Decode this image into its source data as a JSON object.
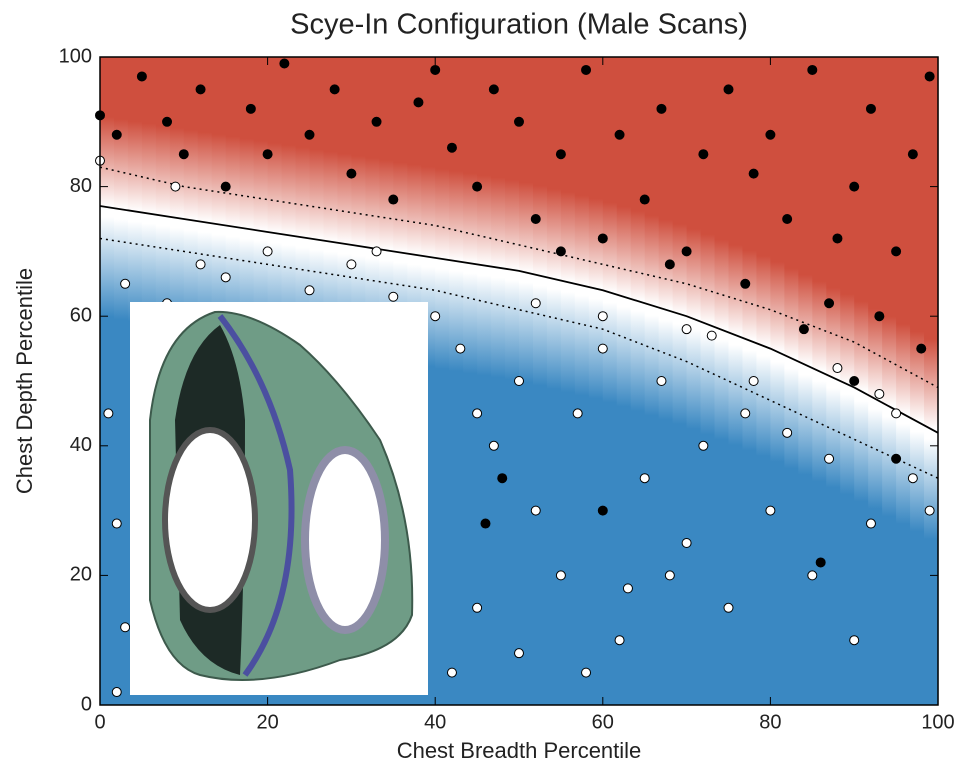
{
  "chart_data": {
    "type": "scatter",
    "title": "Scye-In Configuration (Male Scans)",
    "x_label": "Chest Breadth Percentile",
    "y_label": "Chest Depth Percentile",
    "xlim": [
      0,
      100
    ],
    "ylim": [
      0,
      100
    ],
    "xticks": [
      0,
      20,
      40,
      60,
      80,
      100
    ],
    "yticks": [
      0,
      20,
      40,
      60,
      80,
      100
    ],
    "series": [
      {
        "color": "#000000",
        "edge": "#000000",
        "x": [
          0,
          2,
          5,
          8,
          10,
          12,
          15,
          18,
          20,
          22,
          25,
          28,
          30,
          33,
          35,
          38,
          40,
          42,
          45,
          47,
          50,
          52,
          55,
          58,
          60,
          62,
          65,
          67,
          70,
          72,
          75,
          77,
          80,
          82,
          85,
          87,
          90,
          92,
          95,
          97,
          99,
          98,
          93,
          88,
          78,
          68,
          55,
          48,
          46,
          60,
          86,
          95,
          90,
          84
        ],
        "values": [
          91,
          88,
          97,
          90,
          85,
          95,
          80,
          92,
          85,
          99,
          88,
          95,
          82,
          90,
          78,
          93,
          98,
          86,
          80,
          95,
          90,
          75,
          85,
          98,
          72,
          88,
          78,
          92,
          70,
          85,
          95,
          65,
          88,
          75,
          98,
          62,
          80,
          92,
          70,
          85,
          97,
          55,
          60,
          72,
          82,
          68,
          70,
          35,
          28,
          30,
          22,
          38,
          50,
          58
        ]
      },
      {
        "color": "#ffffff",
        "edge": "#000000",
        "x": [
          0,
          3,
          8,
          12,
          15,
          20,
          25,
          30,
          35,
          40,
          43,
          45,
          47,
          50,
          52,
          55,
          57,
          60,
          62,
          65,
          67,
          70,
          72,
          75,
          77,
          80,
          82,
          85,
          87,
          90,
          92,
          95,
          97,
          99,
          42,
          45,
          50,
          58,
          63,
          68,
          73,
          78,
          88,
          93,
          1,
          2,
          3,
          2,
          9,
          33,
          60,
          52,
          70
        ],
        "values": [
          84,
          65,
          62,
          68,
          66,
          70,
          64,
          68,
          63,
          60,
          55,
          45,
          40,
          50,
          30,
          20,
          45,
          55,
          10,
          35,
          50,
          25,
          40,
          15,
          45,
          30,
          42,
          20,
          38,
          10,
          28,
          45,
          35,
          30,
          5,
          15,
          8,
          5,
          18,
          20,
          57,
          50,
          52,
          48,
          45,
          28,
          12,
          2,
          80,
          70,
          60,
          62,
          58
        ]
      }
    ],
    "curves": [
      {
        "color": "#000000",
        "dashed": false,
        "x": [
          0,
          10,
          20,
          30,
          40,
          50,
          60,
          70,
          80,
          90,
          100
        ],
        "values": [
          77,
          75,
          73,
          71,
          69,
          67,
          64,
          60,
          55,
          49,
          42
        ]
      },
      {
        "color": "#000000",
        "dashed": true,
        "x": [
          0,
          10,
          20,
          30,
          40,
          50,
          60,
          70,
          80,
          90,
          100
        ],
        "values": [
          83,
          80,
          78,
          76,
          74,
          71,
          68,
          65,
          61,
          56,
          49
        ]
      },
      {
        "color": "#000000",
        "dashed": true,
        "x": [
          0,
          10,
          20,
          30,
          40,
          50,
          60,
          70,
          80,
          90,
          100
        ],
        "values": [
          72,
          70,
          68,
          66,
          64,
          61,
          58,
          53,
          47,
          41,
          35
        ]
      }
    ],
    "background": {
      "low": "#3a88c2",
      "mid": "#ffffff",
      "high": "#cf4f3e"
    }
  }
}
